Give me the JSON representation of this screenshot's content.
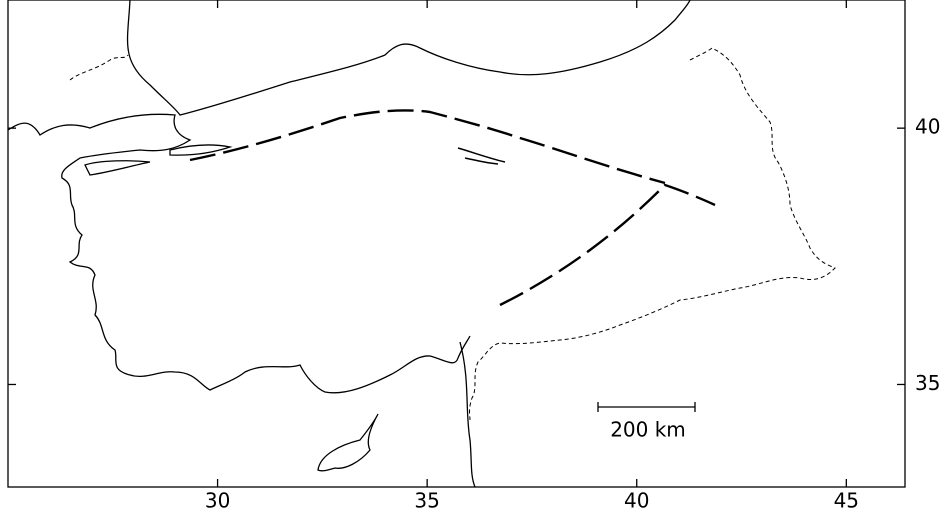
{
  "map": {
    "xlim": [
      25,
      46.4
    ],
    "ylim": [
      33,
      42.5
    ],
    "xticks": [
      30,
      35,
      40,
      45
    ],
    "yticks": [
      35,
      40
    ],
    "scale_bar": "200 km"
  }
}
